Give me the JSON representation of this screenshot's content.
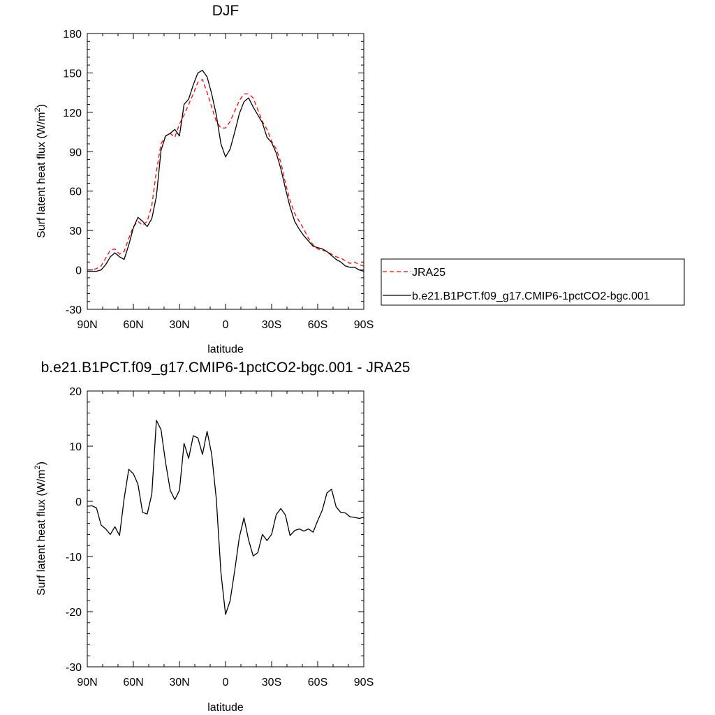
{
  "chart_data": [
    {
      "type": "line",
      "title": "DJF",
      "xlabel": "latitude",
      "ylabel": "Surf latent heat flux (W/m²)",
      "ylabel_main": "Surf latent heat flux (W/m",
      "ylabel_sup": "2",
      "ylabel_close": ")",
      "xlim": [
        90,
        -90
      ],
      "ylim": [
        -30,
        180
      ],
      "x_ticks": [
        90,
        60,
        30,
        0,
        -30,
        -60,
        -90
      ],
      "x_tick_labels": [
        "90N",
        "60N",
        "30N",
        "0",
        "30S",
        "60S",
        "90S"
      ],
      "y_ticks": [
        -30,
        0,
        30,
        60,
        90,
        120,
        150,
        180
      ],
      "y_tick_labels": [
        "-30",
        "0",
        "30",
        "60",
        "90",
        "120",
        "150",
        "180"
      ],
      "legend_position": "outside-right",
      "series": [
        {
          "name": "JRA25",
          "color": "#ff0000",
          "dash": true,
          "x": [
            90,
            87,
            84,
            81,
            78,
            75,
            72,
            69,
            66,
            63,
            60,
            57,
            54,
            51,
            48,
            45,
            42,
            39,
            36,
            33,
            30,
            27,
            24,
            21,
            18,
            15,
            12,
            9,
            6,
            3,
            0,
            -3,
            -6,
            -9,
            -12,
            -15,
            -18,
            -21,
            -24,
            -27,
            -30,
            -33,
            -36,
            -39,
            -42,
            -45,
            -48,
            -51,
            -54,
            -57,
            -60,
            -63,
            -66,
            -69,
            -72,
            -75,
            -78,
            -81,
            -84,
            -87,
            -90
          ],
          "values": [
            0,
            0,
            1,
            3,
            9,
            15,
            16,
            12,
            14,
            24,
            33,
            37,
            34,
            37,
            49,
            75,
            96,
            102,
            104,
            101,
            111,
            118,
            126,
            134,
            143,
            145,
            135,
            124,
            113,
            108,
            108,
            113,
            121,
            129,
            134,
            134,
            131,
            122,
            113,
            107,
            98,
            92,
            82,
            66,
            53,
            43,
            37,
            31,
            24,
            19,
            16,
            15,
            14,
            12,
            10,
            9,
            7,
            5,
            6,
            4,
            3
          ]
        },
        {
          "name": "b.e21.B1PCT.f09_g17.CMIP6-1pctCO2-bgc.001",
          "color": "#000000",
          "dash": false,
          "x": [
            90,
            87,
            84,
            81,
            78,
            75,
            72,
            69,
            66,
            63,
            60,
            57,
            54,
            51,
            48,
            45,
            42,
            39,
            36,
            33,
            30,
            27,
            24,
            21,
            18,
            15,
            12,
            9,
            6,
            3,
            0,
            -3,
            -6,
            -9,
            -12,
            -15,
            -18,
            -21,
            -24,
            -27,
            -30,
            -33,
            -36,
            -39,
            -42,
            -45,
            -48,
            -51,
            -54,
            -57,
            -60,
            -63,
            -66,
            -69,
            -72,
            -75,
            -78,
            -81,
            -84,
            -87,
            -90
          ],
          "values": [
            -1,
            -1,
            -1,
            0,
            4,
            10,
            13,
            10,
            8,
            19,
            32,
            40,
            37,
            33,
            39,
            56,
            91,
            102,
            104,
            107,
            102,
            126,
            130,
            141,
            150,
            152,
            147,
            134,
            118,
            96,
            86,
            92,
            105,
            119,
            128,
            131,
            124,
            118,
            112,
            101,
            97,
            89,
            77,
            62,
            48,
            37,
            31,
            26,
            22,
            18,
            17,
            16,
            14,
            11,
            8,
            6,
            3,
            2,
            2,
            0,
            -1
          ]
        }
      ]
    },
    {
      "type": "line",
      "title": "b.e21.B1PCT.f09_g17.CMIP6-1pctCO2-bgc.001 - JRA25",
      "xlabel": "latitude",
      "ylabel": "Surf latent heat flux (W/m²)",
      "ylabel_main": "Surf latent heat flux (W/m",
      "ylabel_sup": "2",
      "ylabel_close": ")",
      "xlim": [
        90,
        -90
      ],
      "ylim": [
        -30,
        20
      ],
      "x_ticks": [
        90,
        60,
        30,
        0,
        -30,
        -60,
        -90
      ],
      "x_tick_labels": [
        "90N",
        "60N",
        "30N",
        "0",
        "30S",
        "60S",
        "90S"
      ],
      "y_ticks": [
        -30,
        -20,
        -10,
        0,
        10,
        20
      ],
      "y_tick_labels": [
        "-30",
        "-20",
        "-10",
        "0",
        "10",
        "20"
      ],
      "series": [
        {
          "color": "#000000",
          "dash": false,
          "x": [
            90,
            87,
            84,
            81,
            78,
            75,
            72,
            69,
            66,
            63,
            60,
            57,
            54,
            51,
            48,
            45,
            42,
            39,
            36,
            33,
            30,
            27,
            24,
            21,
            18,
            15,
            12,
            9,
            6,
            3,
            0,
            -3,
            -6,
            -9,
            -12,
            -15,
            -18,
            -21,
            -24,
            -27,
            -30,
            -33,
            -36,
            -39,
            -42,
            -45,
            -48,
            -51,
            -54,
            -57,
            -60,
            -63,
            -66,
            -69,
            -72,
            -75,
            -78,
            -81,
            -84,
            -87,
            -90
          ],
          "values": [
            -0.9,
            -0.8,
            -1.2,
            -4.3,
            -5.0,
            -6.0,
            -4.6,
            -6.2,
            0.5,
            5.8,
            5.0,
            3.1,
            -2.0,
            -2.3,
            1.3,
            14.7,
            13.0,
            7.0,
            2.0,
            0.3,
            2.0,
            10.5,
            7.8,
            11.9,
            11.5,
            8.5,
            12.7,
            8.5,
            0.4,
            -12.9,
            -20.5,
            -18.0,
            -12.5,
            -6.5,
            -3.0,
            -7.0,
            -9.9,
            -9.3,
            -6.0,
            -7.1,
            -6.0,
            -2.4,
            -1.3,
            -2.5,
            -6.2,
            -5.3,
            -5.0,
            -5.4,
            -5.0,
            -5.6,
            -3.5,
            -1.6,
            1.5,
            2.2,
            -1.0,
            -2.0,
            -2.1,
            -2.8,
            -2.9,
            -3.1,
            -2.9
          ]
        }
      ]
    }
  ]
}
